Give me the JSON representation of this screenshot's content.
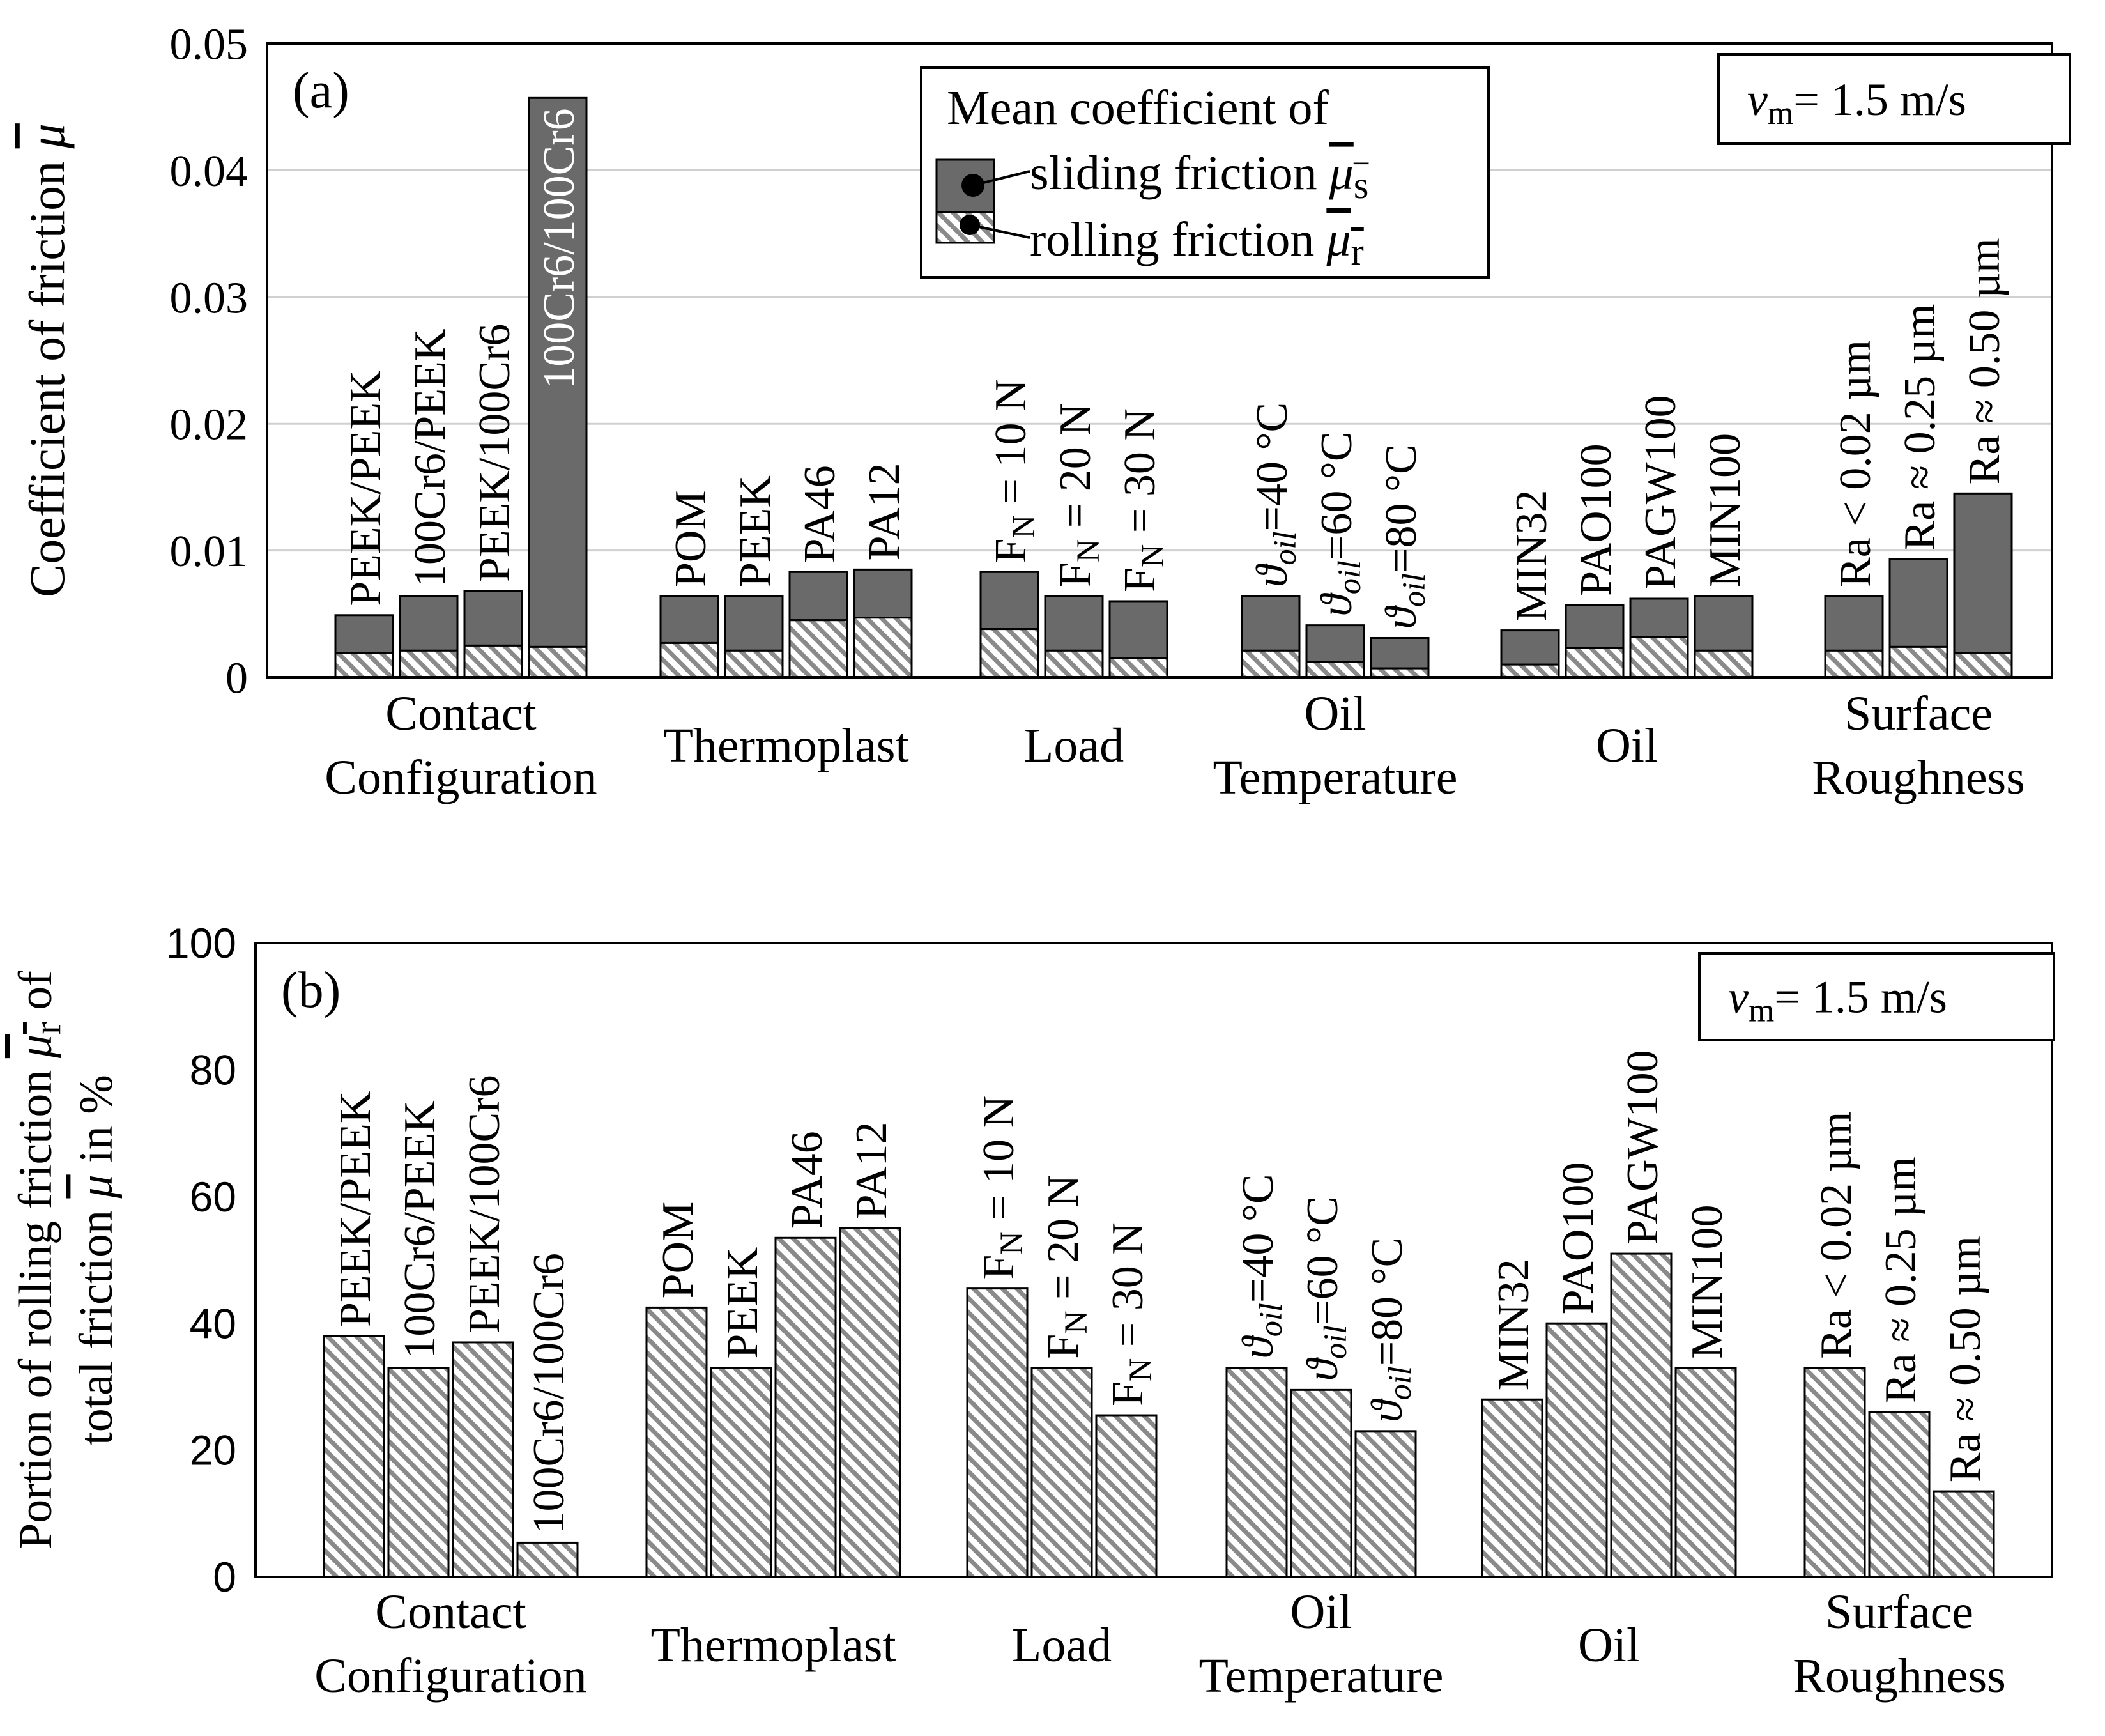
{
  "chart_data": [
    {
      "panel": "(a)",
      "type": "bar",
      "stacked": true,
      "ylabel_parts": [
        "Coefficient of friction ",
        "μ"
      ],
      "ylim": [
        0,
        0.05
      ],
      "yticks": [
        "0",
        "0.01",
        "0.02",
        "0.03",
        "0.04",
        "0.05"
      ],
      "grid": true,
      "speed_box": {
        "symbol": "v",
        "sub": "m",
        "rest": "= 1.5 m/s"
      },
      "legend": {
        "position": "top-center",
        "title": "Mean coefficient of",
        "entries": [
          {
            "label": "sliding friction ",
            "symbol": "μ",
            "sub": "s",
            "color": "#6a6a6a",
            "pattern": "solid"
          },
          {
            "label": "rolling friction ",
            "symbol": "μ",
            "sub": "r",
            "color": "#9a9a9a",
            "pattern": "hatch"
          }
        ]
      },
      "groups": [
        {
          "name_lines": [
            "Contact",
            "Configuration"
          ],
          "bars": [
            {
              "label": "PEEK/PEEK",
              "total": 0.0049,
              "rolling": 0.0019
            },
            {
              "label": "100Cr6/PEEK",
              "total": 0.0064,
              "rolling": 0.0021
            },
            {
              "label": "PEEK/100Cr6",
              "total": 0.0068,
              "rolling": 0.0025
            },
            {
              "label": "100Cr6/100Cr6",
              "total": 0.0457,
              "rolling": 0.0024,
              "label_inside": true
            }
          ]
        },
        {
          "name_lines": [
            "Thermoplast"
          ],
          "bars": [
            {
              "label": "POM",
              "total": 0.0064,
              "rolling": 0.0027
            },
            {
              "label": "PEEK",
              "total": 0.0064,
              "rolling": 0.0021
            },
            {
              "label": "PA46",
              "total": 0.0083,
              "rolling": 0.0045
            },
            {
              "label": "PA12",
              "total": 0.0085,
              "rolling": 0.0047
            }
          ]
        },
        {
          "name_lines": [
            "Load"
          ],
          "bars": [
            {
              "label": "F_N = 10 N",
              "total": 0.0083,
              "rolling": 0.0038
            },
            {
              "label": "F_N = 20 N",
              "total": 0.0064,
              "rolling": 0.0021
            },
            {
              "label": "F_N = 30 N",
              "total": 0.006,
              "rolling": 0.0015
            }
          ]
        },
        {
          "name_lines": [
            "Oil",
            "Temperature"
          ],
          "bars": [
            {
              "label": "ϑ_oil=40 °C",
              "total": 0.0064,
              "rolling": 0.0021
            },
            {
              "label": "ϑ_oil=60 °C",
              "total": 0.0041,
              "rolling": 0.0012
            },
            {
              "label": "ϑ_oil=80 °C",
              "total": 0.0031,
              "rolling": 0.0007
            }
          ]
        },
        {
          "name_lines": [
            "Oil"
          ],
          "bars": [
            {
              "label": "MIN32",
              "total": 0.0037,
              "rolling": 0.001
            },
            {
              "label": "PAO100",
              "total": 0.0057,
              "rolling": 0.0023
            },
            {
              "label": "PAGW100",
              "total": 0.0062,
              "rolling": 0.0032
            },
            {
              "label": "MIN100",
              "total": 0.0064,
              "rolling": 0.0021
            }
          ]
        },
        {
          "name_lines": [
            "Surface",
            "Roughness"
          ],
          "bars": [
            {
              "label": "Ra < 0.02 µm",
              "total": 0.0064,
              "rolling": 0.0021
            },
            {
              "label": "Ra ≈ 0.25 µm",
              "total": 0.0093,
              "rolling": 0.0024
            },
            {
              "label": "Ra ≈ 0.50 µm",
              "total": 0.0145,
              "rolling": 0.0019
            }
          ]
        }
      ]
    },
    {
      "panel": "(b)",
      "type": "bar",
      "ylabel_line1": [
        "Portion of rolling friction ",
        "μ",
        "r",
        " of"
      ],
      "ylabel_line2": [
        "total friction ",
        "μ",
        " in %"
      ],
      "ylim": [
        0,
        100
      ],
      "yticks": [
        "0",
        "20",
        "40",
        "60",
        "80",
        "100"
      ],
      "grid": false,
      "speed_box": {
        "symbol": "v",
        "sub": "m",
        "rest": "= 1.5 m/s"
      },
      "groups": [
        {
          "name_lines": [
            "Contact",
            "Configuration"
          ],
          "bars": [
            {
              "label": "PEEK/PEEK",
              "value": 38
            },
            {
              "label": "100Cr6/PEEK",
              "value": 33
            },
            {
              "label": "PEEK/100Cr6",
              "value": 37
            },
            {
              "label": "100Cr6/100Cr6",
              "value": 5.4
            }
          ]
        },
        {
          "name_lines": [
            "Thermoplast"
          ],
          "bars": [
            {
              "label": "POM",
              "value": 42.5
            },
            {
              "label": "PEEK",
              "value": 33
            },
            {
              "label": "PA46",
              "value": 53.5
            },
            {
              "label": "PA12",
              "value": 55
            }
          ]
        },
        {
          "name_lines": [
            "Load"
          ],
          "bars": [
            {
              "label": "F_N = 10 N",
              "value": 45.5
            },
            {
              "label": "F_N = 20 N",
              "value": 33
            },
            {
              "label": "F_N = 30 N",
              "value": 25.5
            }
          ]
        },
        {
          "name_lines": [
            "Oil",
            "Temperature"
          ],
          "bars": [
            {
              "label": "ϑ_oil=40 °C",
              "value": 33
            },
            {
              "label": "ϑ_oil=60 °C",
              "value": 29.5
            },
            {
              "label": "ϑ_oil=80 °C",
              "value": 23
            }
          ]
        },
        {
          "name_lines": [
            "Oil"
          ],
          "bars": [
            {
              "label": "MIN32",
              "value": 28
            },
            {
              "label": "PAO100",
              "value": 40
            },
            {
              "label": "PAGW100",
              "value": 51
            },
            {
              "label": "MIN100",
              "value": 33
            }
          ]
        },
        {
          "name_lines": [
            "Surface",
            "Roughness"
          ],
          "bars": [
            {
              "label": "Ra < 0.02 µm",
              "value": 33
            },
            {
              "label": "Ra ≈ 0.25 µm",
              "value": 26
            },
            {
              "label": "Ra ≈ 0.50 µm",
              "value": 13.5
            }
          ]
        }
      ]
    }
  ]
}
